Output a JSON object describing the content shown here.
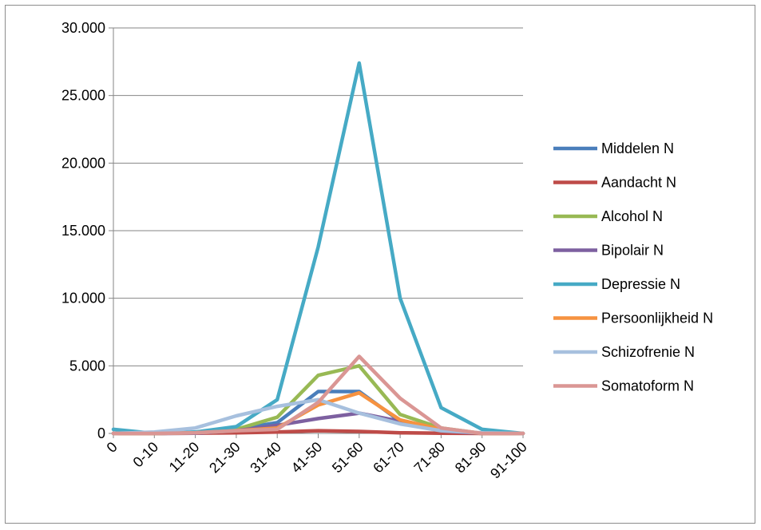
{
  "chart_data": {
    "type": "line",
    "title": "",
    "xlabel": "",
    "ylabel": "",
    "categories": [
      "0",
      "0-10",
      "11-20",
      "21-30",
      "31-40",
      "41-50",
      "51-60",
      "61-70",
      "71-80",
      "81-90",
      "91-100"
    ],
    "ylim": [
      0,
      30000
    ],
    "yticks": [
      0,
      5000,
      10000,
      15000,
      20000,
      25000,
      30000
    ],
    "ytick_labels": [
      "0",
      "5.000",
      "10.000",
      "15.000",
      "20.000",
      "25.000",
      "30.000"
    ],
    "grid": "horizontal",
    "legend_position": "right",
    "series": [
      {
        "name": "Middelen N",
        "color": "#4a7ebb",
        "values": [
          0,
          0,
          50,
          300,
          800,
          3100,
          3100,
          900,
          200,
          0,
          0
        ]
      },
      {
        "name": "Aandacht N",
        "color": "#be4b48",
        "values": [
          0,
          0,
          20,
          50,
          100,
          200,
          150,
          50,
          10,
          0,
          0
        ]
      },
      {
        "name": "Alcohol N",
        "color": "#98b954",
        "values": [
          0,
          0,
          50,
          300,
          1200,
          4300,
          5000,
          1400,
          400,
          0,
          0
        ]
      },
      {
        "name": "Bipolair N",
        "color": "#7d60a0",
        "values": [
          0,
          0,
          20,
          200,
          600,
          1100,
          1500,
          900,
          200,
          0,
          0
        ]
      },
      {
        "name": "Depressie N",
        "color": "#46aac5",
        "values": [
          300,
          0,
          100,
          500,
          2500,
          13800,
          27400,
          10000,
          1900,
          300,
          0
        ]
      },
      {
        "name": "Persoonlijkheid N",
        "color": "#f69240",
        "values": [
          0,
          0,
          50,
          200,
          400,
          2100,
          3000,
          1000,
          300,
          0,
          0
        ]
      },
      {
        "name": "Schizofrenie N",
        "color": "#a7c0de",
        "values": [
          0,
          100,
          400,
          1300,
          2000,
          2500,
          1500,
          700,
          200,
          50,
          0
        ]
      },
      {
        "name": "Somatoform N",
        "color": "#da9694",
        "values": [
          0,
          0,
          50,
          200,
          300,
          2300,
          5700,
          2600,
          400,
          0,
          0
        ]
      }
    ]
  }
}
